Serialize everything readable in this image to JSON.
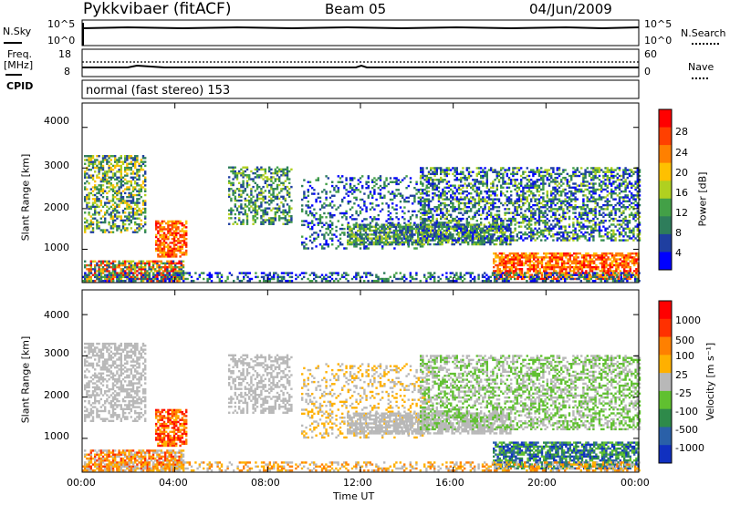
{
  "header": {
    "station": "Pykkvibaer (fitACF)",
    "beam": "Beam 05",
    "date": "04/Jun/2009"
  },
  "nsky_panel": {
    "left_label": "N.Sky",
    "left_ticks": [
      "10^5",
      "10^0"
    ],
    "right_ticks": [
      "10^5",
      "10^0"
    ],
    "right_label": "N.Search"
  },
  "freq_panel": {
    "left_label_line1": "Freq.",
    "left_label_line2": "[MHz]",
    "left_ticks": [
      "18",
      "8"
    ],
    "right_ticks": [
      "60",
      "0"
    ],
    "right_label": "Nave"
  },
  "cpid": {
    "label": "CPID",
    "value": "normal (fast stereo) 153"
  },
  "power_panel": {
    "ylabel": "Slant Range [km]",
    "yticks": [
      "4000",
      "3000",
      "2000",
      "1000"
    ],
    "colorbar_label": "Power [dB]",
    "colorbar_ticks": [
      "28",
      "24",
      "20",
      "16",
      "12",
      "8",
      "4"
    ],
    "colors": [
      "#0000ff",
      "#1f3fa0",
      "#2e7d5b",
      "#43a047",
      "#b0d020",
      "#ffc000",
      "#ff8000",
      "#ff4000",
      "#ff0000"
    ]
  },
  "velocity_panel": {
    "ylabel": "Slant Range [km]",
    "yticks": [
      "4000",
      "3000",
      "2000",
      "1000"
    ],
    "colorbar_label": "Velocity [m s⁻¹]",
    "colorbar_ticks": [
      "1000",
      "500",
      "100",
      "25",
      "-25",
      "-100",
      "-500",
      "-1000"
    ],
    "colors": [
      "#1030c0",
      "#2a60a8",
      "#2e8a4a",
      "#60c030",
      "#b8b8b8",
      "#ffb000",
      "#ff8000",
      "#ff3000",
      "#ff0000"
    ]
  },
  "x_axis": {
    "label": "Time UT",
    "ticks": [
      "00:00",
      "04:00",
      "08:00",
      "12:00",
      "16:00",
      "20:00",
      "00:00"
    ]
  },
  "chart_data": {
    "type": "heatmap",
    "x": [
      "00:00",
      "04:00",
      "08:00",
      "12:00",
      "16:00",
      "20:00",
      "00:00"
    ],
    "xlabel": "Time UT",
    "ylabel": "Slant Range [km]",
    "ylim": [
      180,
      4600
    ],
    "panels": [
      {
        "name": "Power [dB]",
        "colorbar": [
          4,
          8,
          12,
          16,
          20,
          24,
          28
        ]
      },
      {
        "name": "Velocity [m s⁻¹]",
        "colorbar": [
          1000,
          500,
          100,
          25,
          -25,
          -100,
          -500,
          -1000
        ]
      }
    ]
  }
}
